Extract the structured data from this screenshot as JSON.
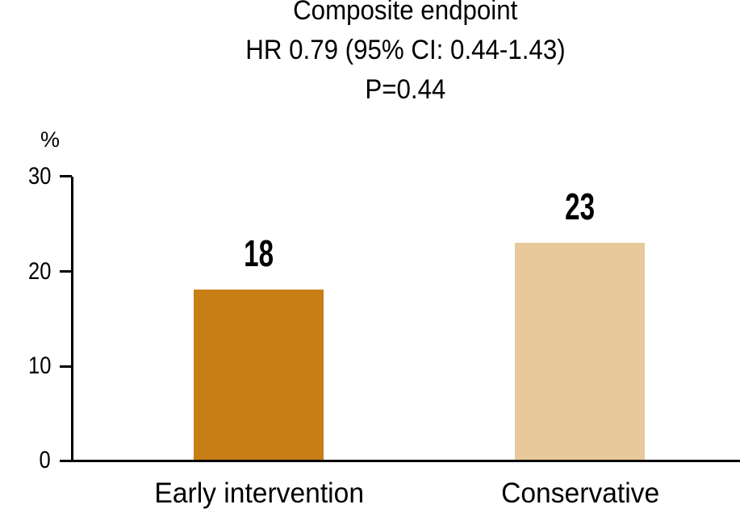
{
  "chart_data": {
    "type": "bar",
    "title_lines": [
      "Composite endpoint",
      "HR 0.79 (95% CI: 0.44-1.43)",
      "P=0.44"
    ],
    "categories": [
      "Early intervention",
      "Conservative"
    ],
    "values": [
      18,
      23
    ],
    "value_labels": [
      "18",
      "23"
    ],
    "bar_colors": [
      "#C77E17",
      "#E9C99C"
    ],
    "ylabel": "%",
    "ylim": [
      0,
      30
    ],
    "yticks": [
      30,
      20,
      10,
      0
    ],
    "grid": false,
    "legend": "none",
    "axis_color": "#000000"
  }
}
